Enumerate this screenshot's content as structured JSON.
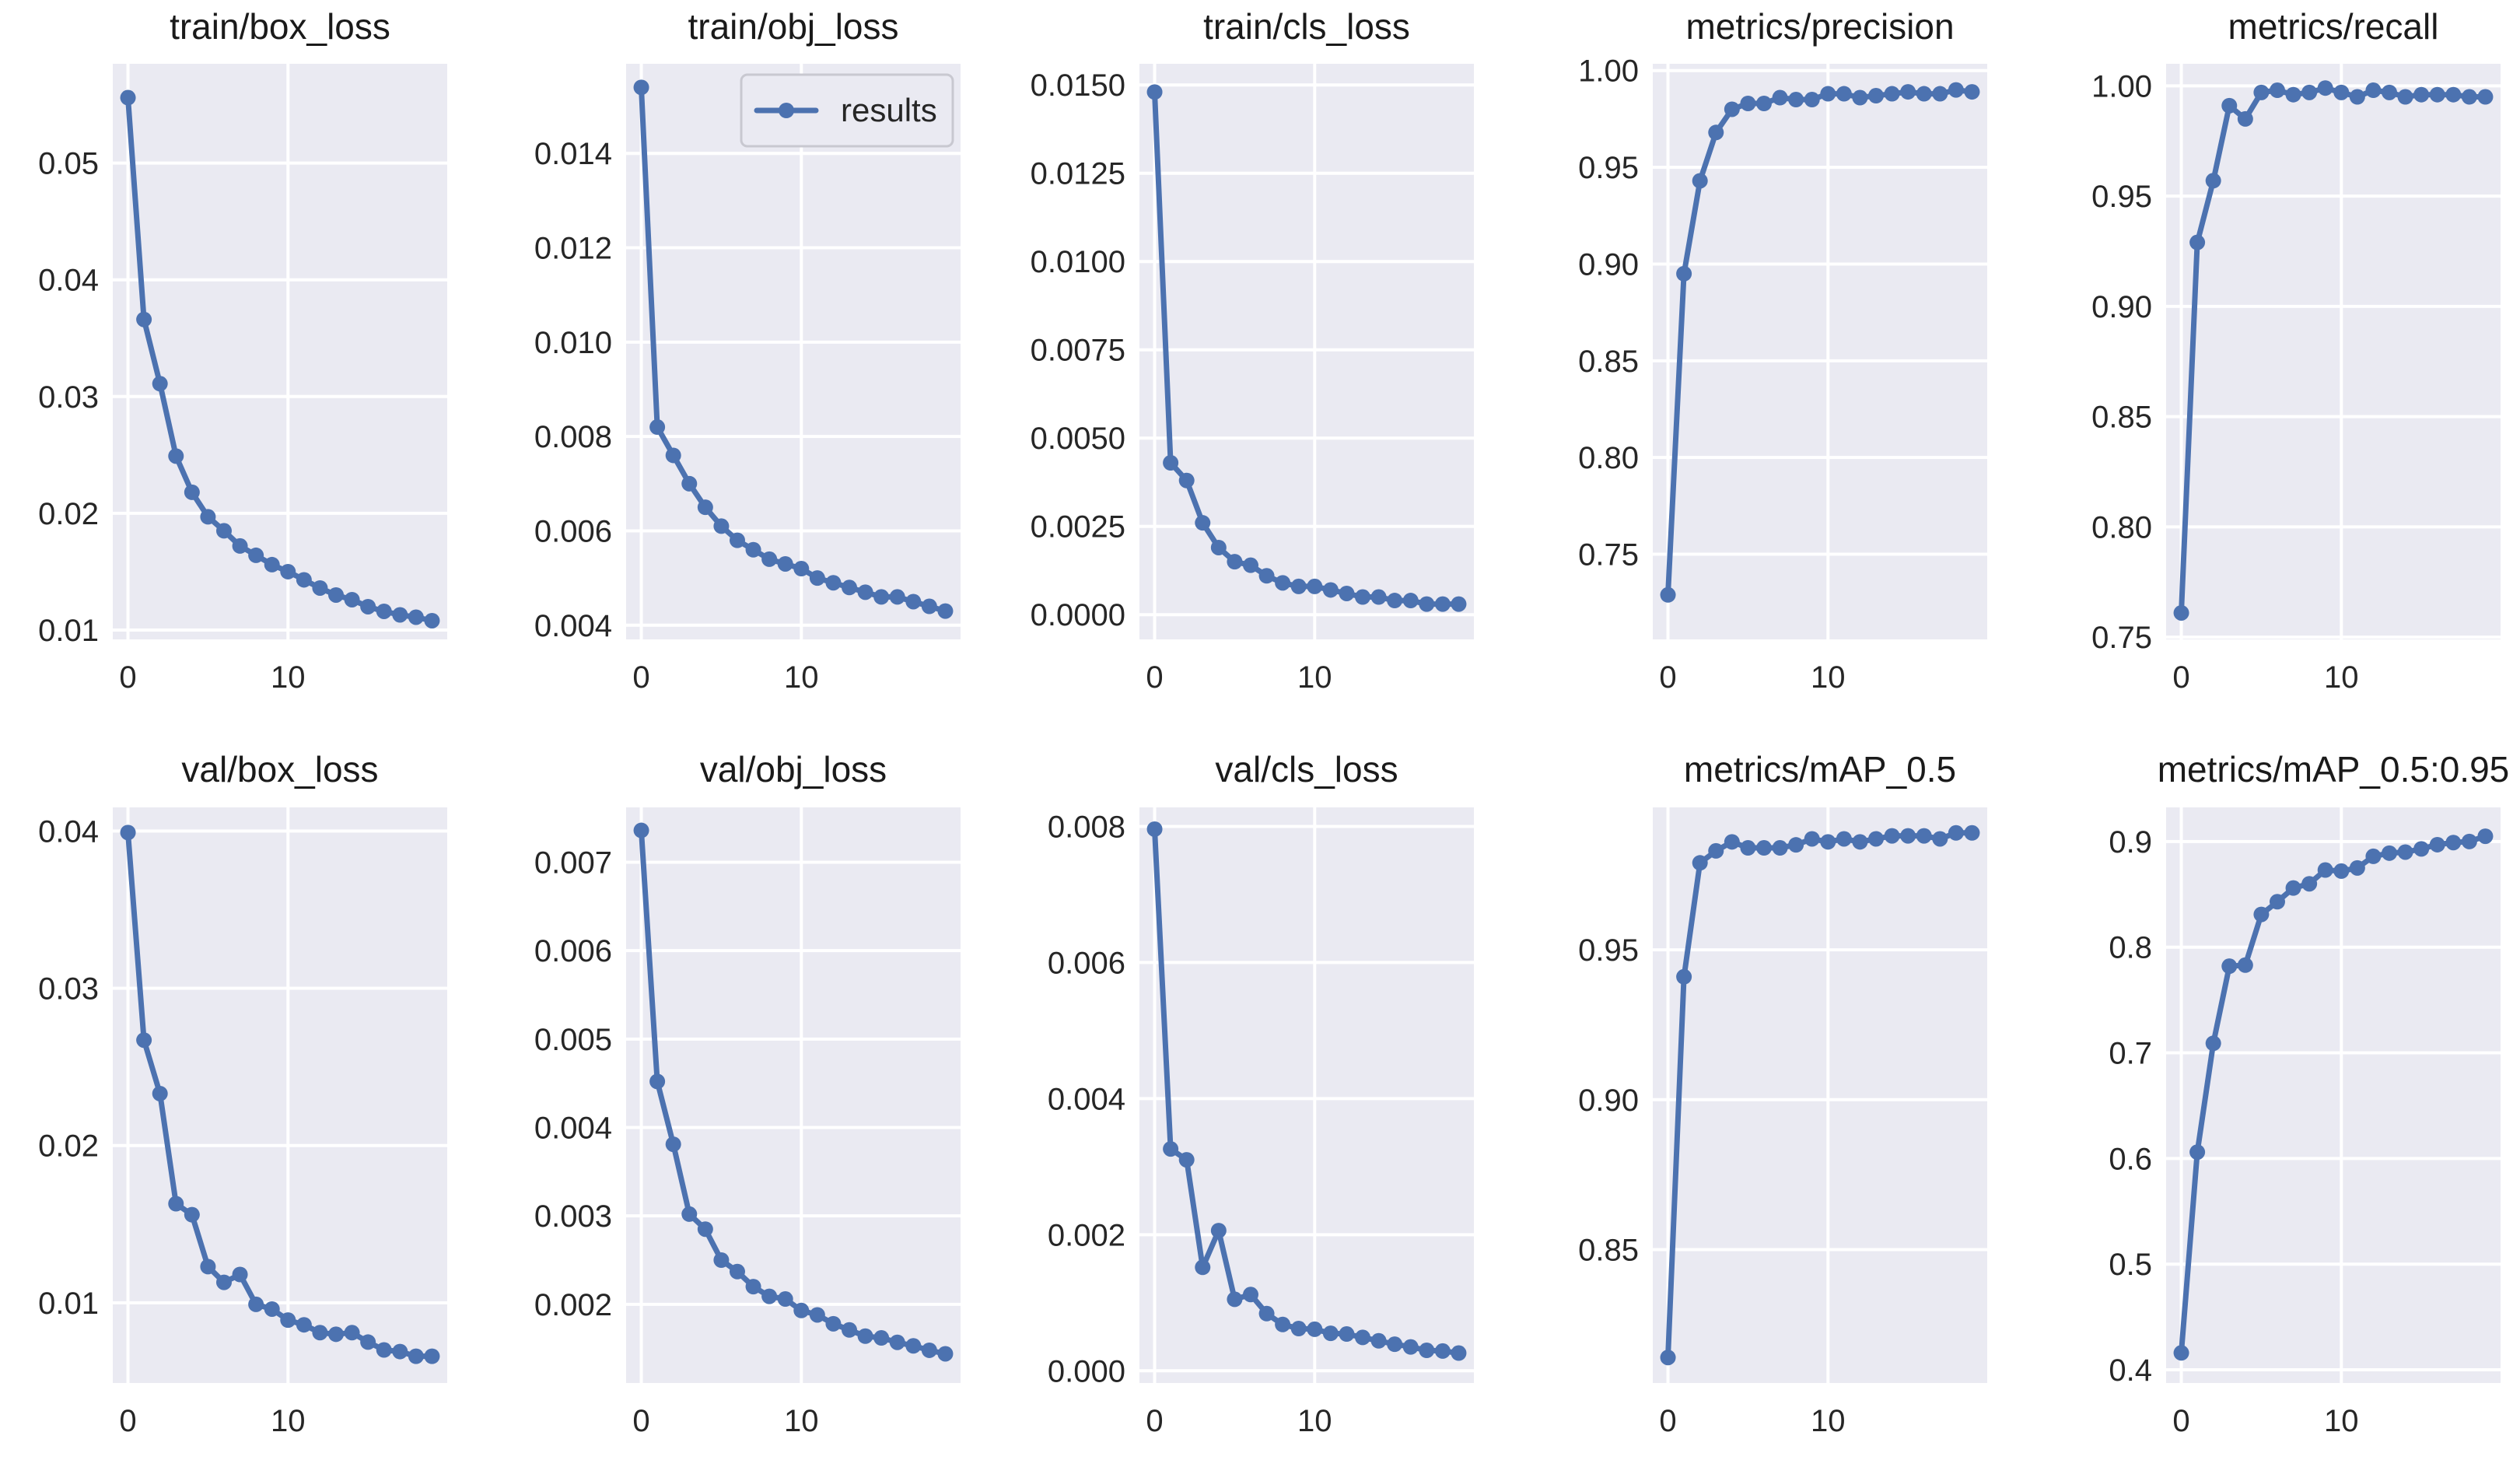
{
  "figure": {
    "legend_label": "results"
  },
  "colors": {
    "series": "#4c72b0",
    "panel_bg": "#eaeaf2",
    "grid": "#ffffff"
  },
  "chart_data": [
    {
      "type": "line",
      "title": "train/box_loss",
      "x": [
        0,
        1,
        2,
        3,
        4,
        5,
        6,
        7,
        8,
        9,
        10,
        11,
        12,
        13,
        14,
        15,
        16,
        17,
        18,
        19
      ],
      "values": [
        0.0556,
        0.0366,
        0.0311,
        0.0249,
        0.0218,
        0.0197,
        0.0185,
        0.0172,
        0.0164,
        0.0156,
        0.015,
        0.0143,
        0.0136,
        0.013,
        0.0126,
        0.012,
        0.0116,
        0.0113,
        0.0111,
        0.0108
      ],
      "ylim": [
        0.0092,
        0.0585
      ],
      "yticks": [
        0.01,
        0.02,
        0.03,
        0.04,
        0.05
      ],
      "ytick_labels": [
        "0.01",
        "0.02",
        "0.03",
        "0.04",
        "0.05"
      ],
      "xlim": [
        -0.95,
        19.95
      ],
      "xticks": [
        0,
        10
      ],
      "xtick_labels": [
        "0",
        "10"
      ]
    },
    {
      "type": "line",
      "title": "train/obj_loss",
      "legend": "results",
      "x": [
        0,
        1,
        2,
        3,
        4,
        5,
        6,
        7,
        8,
        9,
        10,
        11,
        12,
        13,
        14,
        15,
        16,
        17,
        18,
        19
      ],
      "values": [
        0.0154,
        0.0082,
        0.0076,
        0.007,
        0.0065,
        0.0061,
        0.0058,
        0.0056,
        0.0054,
        0.0053,
        0.0052,
        0.005,
        0.0049,
        0.0048,
        0.0047,
        0.0046,
        0.0046,
        0.0045,
        0.0044,
        0.0043
      ],
      "ylim": [
        0.0037,
        0.0159
      ],
      "yticks": [
        0.004,
        0.006,
        0.008,
        0.01,
        0.012,
        0.014
      ],
      "ytick_labels": [
        "0.004",
        "0.006",
        "0.008",
        "0.010",
        "0.012",
        "0.014"
      ],
      "xlim": [
        -0.95,
        19.95
      ],
      "xticks": [
        0,
        10
      ],
      "xtick_labels": [
        "0",
        "10"
      ]
    },
    {
      "type": "line",
      "title": "train/cls_loss",
      "x": [
        0,
        1,
        2,
        3,
        4,
        5,
        6,
        7,
        8,
        9,
        10,
        11,
        12,
        13,
        14,
        15,
        16,
        17,
        18,
        19
      ],
      "values": [
        0.0148,
        0.0043,
        0.0038,
        0.0026,
        0.0019,
        0.0015,
        0.0014,
        0.0011,
        0.0009,
        0.0008,
        0.0008,
        0.0007,
        0.0006,
        0.0005,
        0.0005,
        0.0004,
        0.0004,
        0.0003,
        0.0003,
        0.0003
      ],
      "ylim": [
        -0.0007,
        0.0156
      ],
      "yticks": [
        0,
        0.0025,
        0.005,
        0.0075,
        0.01,
        0.0125,
        0.015
      ],
      "ytick_labels": [
        "0.0000",
        "0.0025",
        "0.0050",
        "0.0075",
        "0.0100",
        "0.0125",
        "0.0150"
      ],
      "xlim": [
        -0.95,
        19.95
      ],
      "xticks": [
        0,
        10
      ],
      "xtick_labels": [
        "0",
        "10"
      ]
    },
    {
      "type": "line",
      "title": "metrics/precision",
      "x": [
        0,
        1,
        2,
        3,
        4,
        5,
        6,
        7,
        8,
        9,
        10,
        11,
        12,
        13,
        14,
        15,
        16,
        17,
        18,
        19
      ],
      "values": [
        0.729,
        0.895,
        0.943,
        0.968,
        0.98,
        0.983,
        0.983,
        0.986,
        0.985,
        0.985,
        0.988,
        0.988,
        0.986,
        0.987,
        0.988,
        0.989,
        0.988,
        0.988,
        0.99,
        0.989
      ],
      "ylim": [
        0.706,
        1.0035
      ],
      "yticks": [
        0.75,
        0.8,
        0.85,
        0.9,
        0.95,
        1.0
      ],
      "ytick_labels": [
        "0.75",
        "0.80",
        "0.85",
        "0.90",
        "0.95",
        "1.00"
      ],
      "xlim": [
        -0.95,
        19.95
      ],
      "xticks": [
        0,
        10
      ],
      "xtick_labels": [
        "0",
        "10"
      ]
    },
    {
      "type": "line",
      "title": "metrics/recall",
      "x": [
        0,
        1,
        2,
        3,
        4,
        5,
        6,
        7,
        8,
        9,
        10,
        11,
        12,
        13,
        14,
        15,
        16,
        17,
        18,
        19
      ],
      "values": [
        0.761,
        0.929,
        0.957,
        0.991,
        0.985,
        0.997,
        0.998,
        0.996,
        0.997,
        0.999,
        0.997,
        0.995,
        0.998,
        0.997,
        0.995,
        0.996,
        0.996,
        0.996,
        0.995,
        0.995
      ],
      "ylim": [
        0.749,
        1.01
      ],
      "yticks": [
        0.75,
        0.8,
        0.85,
        0.9,
        0.95,
        1.0
      ],
      "ytick_labels": [
        "0.75",
        "0.80",
        "0.85",
        "0.90",
        "0.95",
        "1.00"
      ],
      "xlim": [
        -0.95,
        19.95
      ],
      "xticks": [
        0,
        10
      ],
      "xtick_labels": [
        "0",
        "10"
      ]
    },
    {
      "type": "line",
      "title": "val/box_loss",
      "x": [
        0,
        1,
        2,
        3,
        4,
        5,
        6,
        7,
        8,
        9,
        10,
        11,
        12,
        13,
        14,
        15,
        16,
        17,
        18,
        19
      ],
      "values": [
        0.0399,
        0.0267,
        0.0233,
        0.0163,
        0.0156,
        0.0123,
        0.0113,
        0.0118,
        0.0099,
        0.0096,
        0.0089,
        0.0086,
        0.0081,
        0.008,
        0.0081,
        0.0075,
        0.007,
        0.0069,
        0.0066,
        0.0066
      ],
      "ylim": [
        0.0049,
        0.0415
      ],
      "yticks": [
        0.01,
        0.02,
        0.03,
        0.04
      ],
      "ytick_labels": [
        "0.01",
        "0.02",
        "0.03",
        "0.04"
      ],
      "xlim": [
        -0.95,
        19.95
      ],
      "xticks": [
        0,
        10
      ],
      "xtick_labels": [
        "0",
        "10"
      ]
    },
    {
      "type": "line",
      "title": "val/obj_loss",
      "x": [
        0,
        1,
        2,
        3,
        4,
        5,
        6,
        7,
        8,
        9,
        10,
        11,
        12,
        13,
        14,
        15,
        16,
        17,
        18,
        19
      ],
      "values": [
        0.00736,
        0.00452,
        0.00381,
        0.00302,
        0.00285,
        0.0025,
        0.00237,
        0.0022,
        0.00209,
        0.00206,
        0.00193,
        0.00188,
        0.00178,
        0.00171,
        0.00164,
        0.00162,
        0.00157,
        0.00153,
        0.00148,
        0.00144
      ],
      "ylim": [
        0.00111,
        0.00762
      ],
      "yticks": [
        0.002,
        0.003,
        0.004,
        0.005,
        0.006,
        0.007
      ],
      "ytick_labels": [
        "0.002",
        "0.003",
        "0.004",
        "0.005",
        "0.006",
        "0.007"
      ],
      "xlim": [
        -0.95,
        19.95
      ],
      "xticks": [
        0,
        10
      ],
      "xtick_labels": [
        "0",
        "10"
      ]
    },
    {
      "type": "line",
      "title": "val/cls_loss",
      "x": [
        0,
        1,
        2,
        3,
        4,
        5,
        6,
        7,
        8,
        9,
        10,
        11,
        12,
        13,
        14,
        15,
        16,
        17,
        18,
        19
      ],
      "values": [
        0.00796,
        0.00326,
        0.0031,
        0.00152,
        0.00206,
        0.00105,
        0.00112,
        0.00084,
        0.00068,
        0.00062,
        0.00061,
        0.00055,
        0.00054,
        0.00049,
        0.00044,
        0.00039,
        0.00035,
        0.0003,
        0.00029,
        0.00026
      ],
      "ylim": [
        -0.00018,
        0.00828
      ],
      "yticks": [
        0,
        0.002,
        0.004,
        0.006,
        0.008
      ],
      "ytick_labels": [
        "0.000",
        "0.002",
        "0.004",
        "0.006",
        "0.008"
      ],
      "xlim": [
        -0.95,
        19.95
      ],
      "xticks": [
        0,
        10
      ],
      "xtick_labels": [
        "0",
        "10"
      ]
    },
    {
      "type": "line",
      "title": "metrics/mAP_0.5",
      "x": [
        0,
        1,
        2,
        3,
        4,
        5,
        6,
        7,
        8,
        9,
        10,
        11,
        12,
        13,
        14,
        15,
        16,
        17,
        18,
        19
      ],
      "values": [
        0.814,
        0.941,
        0.979,
        0.983,
        0.986,
        0.984,
        0.984,
        0.984,
        0.985,
        0.987,
        0.986,
        0.987,
        0.986,
        0.987,
        0.988,
        0.988,
        0.988,
        0.987,
        0.989,
        0.989
      ],
      "ylim": [
        0.8055,
        0.9975
      ],
      "yticks": [
        0.85,
        0.9,
        0.95
      ],
      "ytick_labels": [
        "0.85",
        "0.90",
        "0.95"
      ],
      "xlim": [
        -0.95,
        19.95
      ],
      "xticks": [
        0,
        10
      ],
      "xtick_labels": [
        "0",
        "10"
      ]
    },
    {
      "type": "line",
      "title": "metrics/mAP_0.5:0.95",
      "x": [
        0,
        1,
        2,
        3,
        4,
        5,
        6,
        7,
        8,
        9,
        10,
        11,
        12,
        13,
        14,
        15,
        16,
        17,
        18,
        19
      ],
      "values": [
        0.416,
        0.606,
        0.709,
        0.782,
        0.783,
        0.831,
        0.843,
        0.856,
        0.86,
        0.873,
        0.872,
        0.875,
        0.886,
        0.889,
        0.89,
        0.893,
        0.897,
        0.899,
        0.9,
        0.905
      ],
      "ylim": [
        0.3875,
        0.9323
      ],
      "yticks": [
        0.4,
        0.5,
        0.6,
        0.7,
        0.8,
        0.9
      ],
      "ytick_labels": [
        "0.4",
        "0.5",
        "0.6",
        "0.7",
        "0.8",
        "0.9"
      ],
      "xlim": [
        -0.95,
        19.95
      ],
      "xticks": [
        0,
        10
      ],
      "xtick_labels": [
        "0",
        "10"
      ]
    }
  ]
}
